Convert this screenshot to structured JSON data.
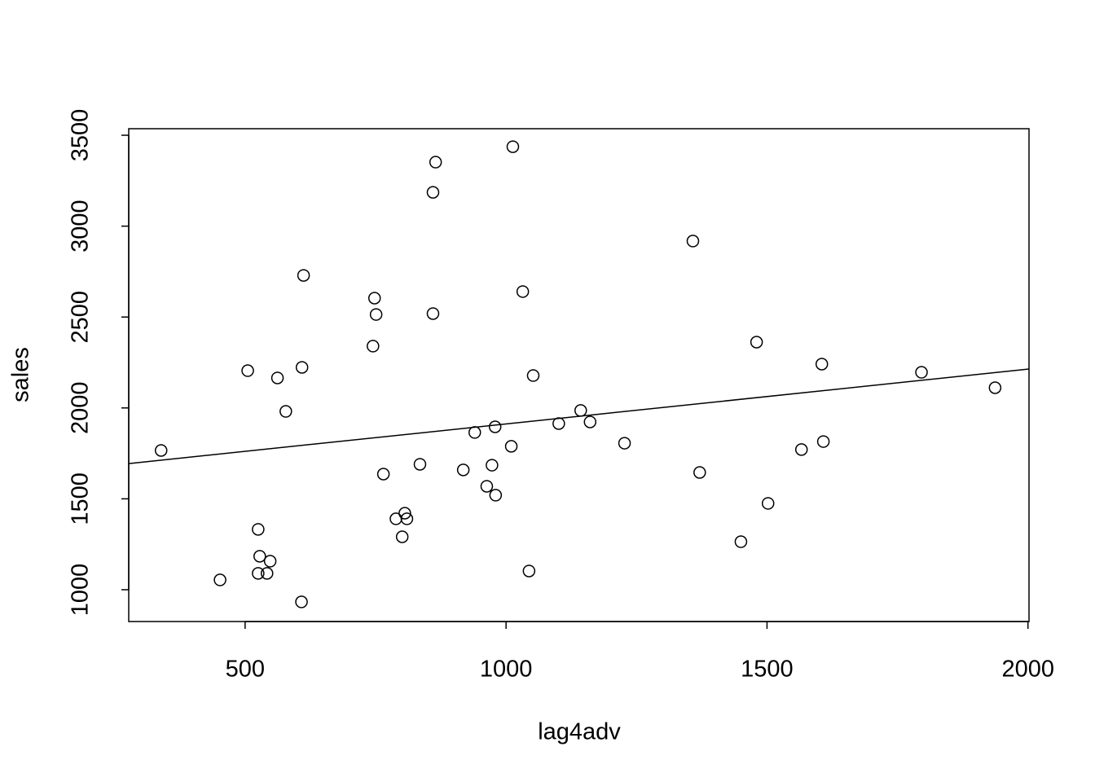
{
  "chart_data": {
    "type": "scatter",
    "xlabel": "lag4adv",
    "ylabel": "sales",
    "xlim": [
      277,
      2002
    ],
    "ylim": [
      825,
      3536
    ],
    "xticks": [
      500,
      1000,
      1500,
      2000
    ],
    "yticks": [
      1000,
      1500,
      2000,
      2500,
      3000,
      3500
    ],
    "color": "#000000",
    "x": [
      339,
      452,
      505,
      525,
      528,
      525,
      542,
      548,
      562,
      578,
      608,
      609,
      612,
      745,
      748,
      751,
      765,
      789,
      806,
      810,
      801,
      835,
      860,
      865,
      860,
      918,
      940,
      963,
      973,
      979,
      980,
      1010,
      1013,
      1032,
      1044,
      1052,
      1101,
      1143,
      1161,
      1227,
      1358,
      1371,
      1450,
      1480,
      1502,
      1566,
      1605,
      1608,
      1796,
      1937
    ],
    "values": [
      1766,
      1054,
      2205,
      1332,
      1184,
      1090,
      1090,
      1157,
      2165,
      1981,
      933,
      2223,
      2729,
      2340,
      2604,
      2514,
      1636,
      1390,
      1421,
      1390,
      1291,
      1690,
      3186,
      3352,
      2519,
      1659,
      1865,
      1569,
      1685,
      1896,
      1520,
      1789,
      3437,
      2640,
      1103,
      2178,
      1914,
      1986,
      1923,
      1806,
      2918,
      1645,
      1264,
      2362,
      1475,
      1771,
      2241,
      1815,
      2196,
      2111
    ],
    "abline": {
      "intercept": 1610.5,
      "slope": 0.3014
    }
  }
}
